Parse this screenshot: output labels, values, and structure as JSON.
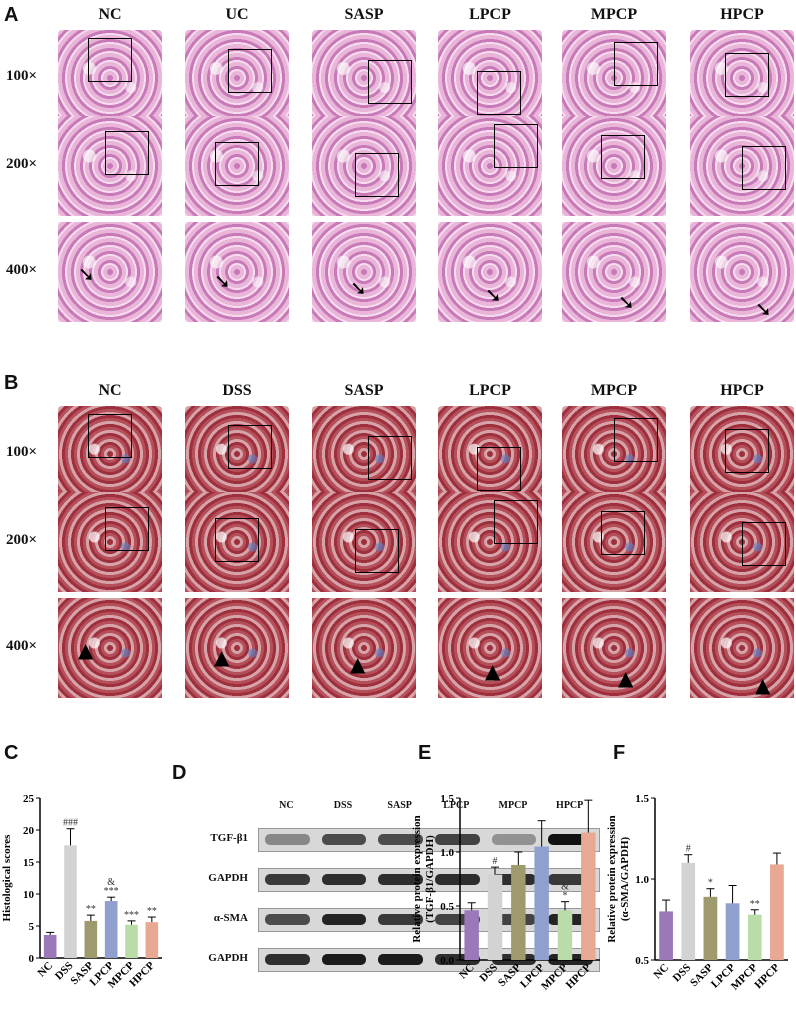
{
  "panels": {
    "A": {
      "label": "A",
      "columns": [
        "NC",
        "UC",
        "SASP",
        "LPCP",
        "MPCP",
        "HPCP"
      ],
      "rows": [
        "100×",
        "200×",
        "400×"
      ]
    },
    "B": {
      "label": "B",
      "columns": [
        "NC",
        "DSS",
        "SASP",
        "LPCP",
        "MPCP",
        "HPCP"
      ],
      "rows": [
        "100×",
        "200×",
        "400×"
      ]
    },
    "C": {
      "label": "C"
    },
    "D": {
      "label": "D",
      "lanes": [
        "NC",
        "DSS",
        "SASP",
        "LPCP",
        "MPCP",
        "HPCP"
      ],
      "bands": [
        "TGF-β1",
        "GAPDH",
        "α-SMA",
        "GAPDH"
      ]
    },
    "E": {
      "label": "E"
    },
    "F": {
      "label": "F"
    }
  },
  "chart_data": [
    {
      "id": "C",
      "type": "bar",
      "categories": [
        "NC",
        "DSS",
        "SASP",
        "LPCP",
        "MPCP",
        "HPCP"
      ],
      "values": [
        3.6,
        17.6,
        5.8,
        8.9,
        5.2,
        5.6
      ],
      "errors": [
        0.4,
        2.6,
        0.9,
        0.6,
        0.6,
        0.8
      ],
      "annotations": [
        "",
        "###",
        "**",
        "&\n***",
        "***",
        "**"
      ],
      "ylabel": "Histological scores",
      "ylim": [
        0,
        25
      ],
      "yticks": [
        0,
        5,
        10,
        15,
        20,
        25
      ],
      "colors": [
        "#9b79b8",
        "#d3d3d3",
        "#9e9a6e",
        "#8fa0cf",
        "#b9dca8",
        "#e8a894"
      ]
    },
    {
      "id": "E",
      "type": "bar",
      "categories": [
        "NC",
        "DSS",
        "SASP",
        "LPCP",
        "MPCP",
        "HPCP"
      ],
      "values": [
        0.46,
        0.79,
        0.88,
        1.05,
        0.46,
        1.18
      ],
      "errors": [
        0.07,
        0.07,
        0.12,
        0.24,
        0.08,
        0.3
      ],
      "annotations": [
        "",
        "#",
        "",
        "",
        "&\n*",
        ""
      ],
      "ylabel": "Relative protein expression\n(TGF-β1/GAPDH)",
      "ylim": [
        0,
        1.5
      ],
      "yticks": [
        "0.0",
        "0.5",
        "1.0",
        "1.5"
      ],
      "colors": [
        "#9b79b8",
        "#d3d3d3",
        "#9e9a6e",
        "#8fa0cf",
        "#b9dca8",
        "#e8a894"
      ]
    },
    {
      "id": "F",
      "type": "bar",
      "categories": [
        "NC",
        "DSS",
        "SASP",
        "LPCP",
        "MPCP",
        "HPCP"
      ],
      "values": [
        0.8,
        1.1,
        0.89,
        0.85,
        0.78,
        1.09
      ],
      "errors": [
        0.07,
        0.05,
        0.05,
        0.11,
        0.03,
        0.07
      ],
      "annotations": [
        "",
        "#",
        "*",
        "",
        "**",
        ""
      ],
      "ylabel": "Relative protein expression\n(α-SMA/GAPDH)",
      "ylim": [
        0.5,
        1.5
      ],
      "yticks": [
        "0.5",
        "1.0",
        "1.5"
      ],
      "colors": [
        "#9b79b8",
        "#d3d3d3",
        "#9e9a6e",
        "#8fa0cf",
        "#b9dca8",
        "#e8a894"
      ]
    }
  ]
}
